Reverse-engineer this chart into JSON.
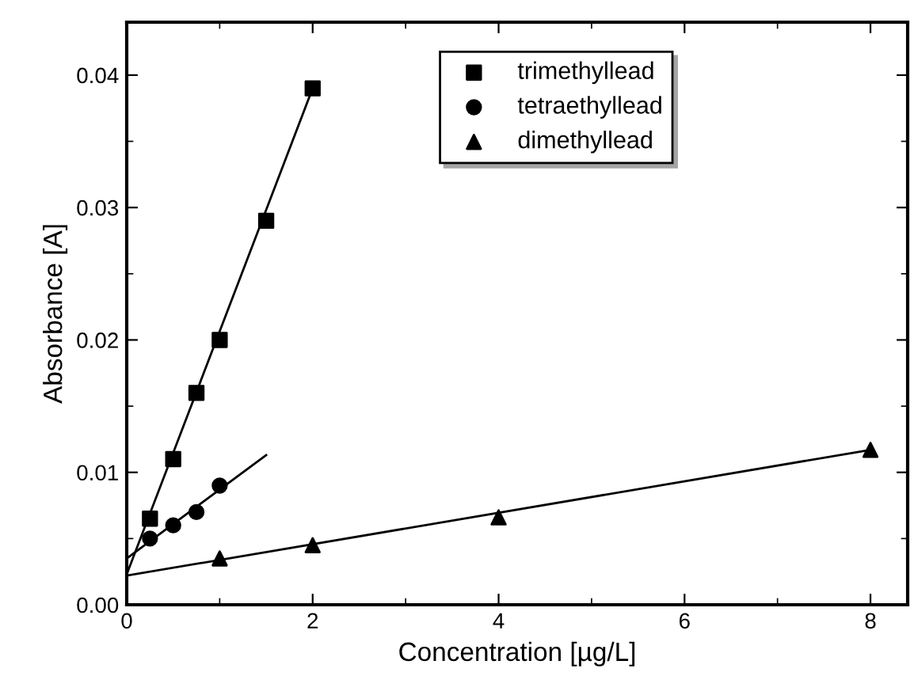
{
  "chart_data": {
    "type": "scatter",
    "xlabel": "Concentration [µg/L]",
    "ylabel": "Absorbance [A]",
    "xlim": [
      0,
      8.4
    ],
    "ylim": [
      0,
      0.044
    ],
    "xticks": [
      0,
      2,
      4,
      6,
      8
    ],
    "yticks": [
      {
        "value": 0,
        "label": "0.00"
      },
      {
        "value": 0.01,
        "label": "0.01"
      },
      {
        "value": 0.02,
        "label": "0.02"
      },
      {
        "value": 0.03,
        "label": "0.03"
      },
      {
        "value": 0.04,
        "label": "0.04"
      }
    ],
    "grid": false,
    "legend": "top",
    "series": [
      {
        "name": "trimethyllead",
        "color": "#000000",
        "marker": "square",
        "x": [
          0.25,
          0.5,
          0.75,
          1,
          1.5,
          2
        ],
        "values": [
          0.0065,
          0.011,
          0.016,
          0.02,
          0.029,
          0.039
        ]
      },
      {
        "name": "tetraethyllead",
        "color": "#000000",
        "marker": "circle",
        "x": [
          0.25,
          0.5,
          0.75,
          1
        ],
        "values": [
          0.005,
          0.006,
          0.007,
          0.009
        ]
      },
      {
        "name": "dimethyllead",
        "color": "#000000",
        "marker": "triangle",
        "x": [
          1,
          2,
          4,
          8
        ],
        "values": [
          0.0035,
          0.0045,
          0.0066,
          0.0117
        ]
      },
      {
        "type": "line",
        "color": "#000000",
        "marker": "none",
        "x": [
          0,
          2
        ],
        "values": [
          0.0023,
          0.039
        ]
      },
      {
        "type": "line",
        "color": "#000000",
        "marker": "none",
        "x": [
          0,
          1.5
        ],
        "values": [
          0.0035,
          0.0113
        ]
      },
      {
        "type": "line",
        "color": "#000000",
        "marker": "none",
        "x": [
          0,
          8
        ],
        "values": [
          0.0022,
          0.0117
        ]
      }
    ]
  }
}
